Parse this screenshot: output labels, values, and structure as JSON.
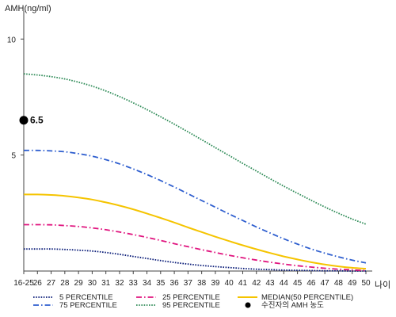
{
  "chart_data": {
    "type": "line",
    "ylabel": "AMH(ng/ml)",
    "xlabel": "나이",
    "ylim": [
      0,
      11
    ],
    "y_ticks": [
      5,
      10
    ],
    "x": [
      "16-25",
      "26",
      "27",
      "28",
      "29",
      "30",
      "31",
      "32",
      "33",
      "34",
      "35",
      "36",
      "37",
      "38",
      "39",
      "40",
      "41",
      "42",
      "43",
      "44",
      "45",
      "46",
      "47",
      "48",
      "49",
      "50"
    ],
    "series": [
      {
        "name": "5 PERCENTILE",
        "color": "#0d1f7a",
        "style": "dotted",
        "values": [
          0.95,
          0.95,
          0.95,
          0.93,
          0.9,
          0.86,
          0.8,
          0.72,
          0.63,
          0.54,
          0.45,
          0.37,
          0.3,
          0.24,
          0.19,
          0.15,
          0.11,
          0.08,
          0.06,
          0.04,
          0.03,
          0.02,
          0.01,
          0.01,
          0.0,
          0.0
        ]
      },
      {
        "name": "25 PERCENTILE",
        "color": "#e0157f",
        "style": "dashdot",
        "values": [
          2.0,
          2.0,
          1.99,
          1.96,
          1.92,
          1.86,
          1.78,
          1.68,
          1.57,
          1.45,
          1.32,
          1.18,
          1.05,
          0.92,
          0.8,
          0.68,
          0.57,
          0.47,
          0.38,
          0.3,
          0.23,
          0.17,
          0.12,
          0.08,
          0.05,
          0.02
        ]
      },
      {
        "name": "MEDIAN(50 PERCENTILE)",
        "color": "#f5c400",
        "style": "solid",
        "values": [
          3.3,
          3.3,
          3.28,
          3.24,
          3.17,
          3.08,
          2.96,
          2.82,
          2.66,
          2.48,
          2.29,
          2.09,
          1.88,
          1.68,
          1.48,
          1.29,
          1.11,
          0.94,
          0.78,
          0.63,
          0.5,
          0.38,
          0.28,
          0.2,
          0.14,
          0.1
        ]
      },
      {
        "name": "75 PERCENTILE",
        "color": "#2f5fcf",
        "style": "dashdot",
        "values": [
          5.2,
          5.2,
          5.18,
          5.14,
          5.06,
          4.95,
          4.8,
          4.62,
          4.4,
          4.16,
          3.9,
          3.62,
          3.33,
          3.04,
          2.75,
          2.46,
          2.18,
          1.9,
          1.64,
          1.39,
          1.16,
          0.95,
          0.77,
          0.61,
          0.47,
          0.35
        ]
      },
      {
        "name": "95 PERCENTILE",
        "color": "#2e8b57",
        "style": "dotted",
        "values": [
          8.5,
          8.45,
          8.38,
          8.28,
          8.14,
          7.97,
          7.76,
          7.52,
          7.25,
          6.96,
          6.65,
          6.33,
          6.0,
          5.66,
          5.32,
          4.98,
          4.64,
          4.31,
          3.98,
          3.66,
          3.35,
          3.05,
          2.76,
          2.49,
          2.24,
          2.02
        ]
      }
    ],
    "marker": {
      "name": "수진자의 AMH 농도",
      "x": "16-25",
      "y": 6.5,
      "label": "6.5",
      "color": "#000000"
    },
    "legend": {
      "placement": "bottom",
      "order": [
        "5 PERCENTILE",
        "25 PERCENTILE",
        "MEDIAN(50 PERCENTILE)",
        "75 PERCENTILE",
        "95 PERCENTILE",
        "수진자의 AMH 농도"
      ]
    }
  }
}
